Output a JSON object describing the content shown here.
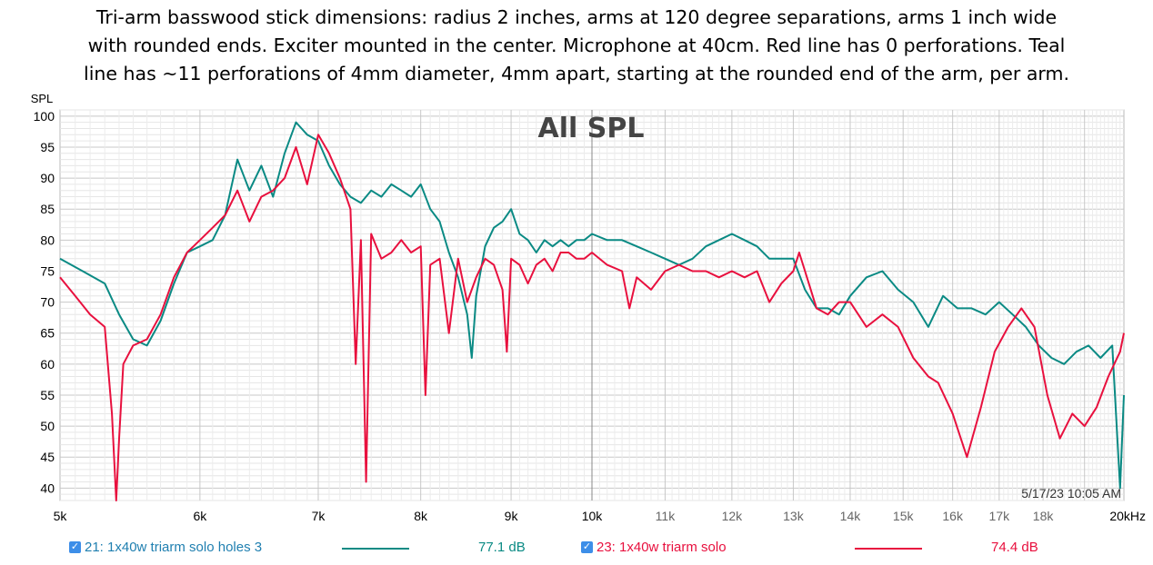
{
  "caption": [
    "Tri-arm basswood stick dimensions: radius 2 inches, arms at 120 degree separations, arms 1 inch wide",
    "with rounded ends. Exciter mounted in the center. Microphone at 40cm. Red line has 0 perforations. Teal",
    "line has ~11 perforations of 4mm diameter, 4mm apart, starting at the rounded end of the arm, per arm."
  ],
  "timestamp": "5/17/23 10:05 AM",
  "colors": {
    "teal": "#0a8a84",
    "red": "#e8103e",
    "grid": "#d4d4d4",
    "checkbox": "#3d8ee8"
  },
  "legend": [
    {
      "checked": true,
      "label": "21: 1x40w triarm solo holes 3",
      "value": "77.1 dB",
      "color": "#0a8a84"
    },
    {
      "checked": true,
      "label": "23: 1x40w triarm solo",
      "value": "74.4 dB",
      "color": "#e8103e"
    }
  ],
  "chart_data": {
    "type": "line",
    "title": "All SPL",
    "ylabel": "SPL",
    "xlabel": "",
    "xscale": "log",
    "xlim": [
      5000,
      20000
    ],
    "ylim": [
      38,
      101
    ],
    "yticks": [
      40,
      45,
      50,
      55,
      60,
      65,
      70,
      75,
      80,
      85,
      90,
      95,
      100
    ],
    "xticks": [
      {
        "value": 5000,
        "label": "5k"
      },
      {
        "value": 6000,
        "label": "6k"
      },
      {
        "value": 7000,
        "label": "7k"
      },
      {
        "value": 8000,
        "label": "8k"
      },
      {
        "value": 9000,
        "label": "9k"
      },
      {
        "value": 10000,
        "label": "10k"
      },
      {
        "value": 11000,
        "label": "11k"
      },
      {
        "value": 12000,
        "label": "12k"
      },
      {
        "value": 13000,
        "label": "13k"
      },
      {
        "value": 14000,
        "label": "14k"
      },
      {
        "value": 15000,
        "label": "15k"
      },
      {
        "value": 16000,
        "label": "16k"
      },
      {
        "value": 17000,
        "label": "17k"
      },
      {
        "value": 18000,
        "label": "18k"
      },
      {
        "value": 20000,
        "label": "20kHz"
      }
    ],
    "series": [
      {
        "name": "21: 1x40w triarm solo holes 3",
        "color": "#0a8a84",
        "x": [
          5000,
          5150,
          5300,
          5400,
          5500,
          5600,
          5700,
          5800,
          5900,
          6000,
          6100,
          6200,
          6300,
          6400,
          6500,
          6600,
          6700,
          6800,
          6850,
          6900,
          7000,
          7100,
          7200,
          7300,
          7400,
          7500,
          7600,
          7700,
          7800,
          7900,
          8000,
          8100,
          8200,
          8300,
          8400,
          8500,
          8550,
          8600,
          8700,
          8800,
          8900,
          9000,
          9100,
          9200,
          9300,
          9400,
          9500,
          9600,
          9700,
          9800,
          9900,
          10000,
          10200,
          10400,
          10600,
          10800,
          11000,
          11200,
          11400,
          11600,
          11800,
          12000,
          12200,
          12400,
          12600,
          12800,
          13000,
          13200,
          13400,
          13600,
          13800,
          14000,
          14300,
          14600,
          14900,
          15200,
          15500,
          15800,
          16100,
          16400,
          16700,
          17000,
          17300,
          17600,
          17900,
          18200,
          18500,
          18800,
          19100,
          19400,
          19700,
          19900,
          20000
        ],
        "y": [
          77,
          75,
          73,
          68,
          64,
          63,
          67,
          73,
          78,
          79,
          80,
          84,
          93,
          88,
          92,
          87,
          94,
          99,
          98,
          97,
          96,
          92,
          89,
          87,
          86,
          88,
          87,
          89,
          88,
          87,
          89,
          85,
          83,
          78,
          74,
          68,
          61,
          71,
          79,
          82,
          83,
          85,
          81,
          80,
          78,
          80,
          79,
          80,
          79,
          80,
          80,
          81,
          80,
          80,
          79,
          78,
          77,
          76,
          77,
          79,
          80,
          81,
          80,
          79,
          77,
          77,
          77,
          72,
          69,
          69,
          68,
          71,
          74,
          75,
          72,
          70,
          66,
          71,
          69,
          69,
          68,
          70,
          68,
          66,
          63,
          61,
          60,
          62,
          63,
          61,
          63,
          40,
          55
        ]
      },
      {
        "name": "23: 1x40w triarm solo",
        "color": "#e8103e",
        "x": [
          5000,
          5100,
          5200,
          5300,
          5350,
          5380,
          5400,
          5430,
          5500,
          5600,
          5700,
          5800,
          5900,
          6000,
          6100,
          6200,
          6300,
          6400,
          6500,
          6600,
          6700,
          6800,
          6900,
          7000,
          7100,
          7200,
          7300,
          7350,
          7400,
          7450,
          7500,
          7600,
          7700,
          7800,
          7900,
          8000,
          8050,
          8100,
          8200,
          8300,
          8400,
          8500,
          8600,
          8700,
          8800,
          8900,
          8950,
          9000,
          9100,
          9200,
          9300,
          9400,
          9500,
          9600,
          9700,
          9800,
          9900,
          10000,
          10200,
          10400,
          10500,
          10600,
          10800,
          11000,
          11200,
          11400,
          11600,
          11800,
          12000,
          12200,
          12400,
          12600,
          12800,
          13000,
          13100,
          13200,
          13400,
          13600,
          13800,
          14000,
          14300,
          14600,
          14900,
          15200,
          15500,
          15700,
          16000,
          16300,
          16600,
          16900,
          17200,
          17500,
          17800,
          18100,
          18400,
          18700,
          19000,
          19300,
          19600,
          19900,
          20000
        ],
        "y": [
          74,
          71,
          68,
          66,
          52,
          38,
          48,
          60,
          63,
          64,
          68,
          74,
          78,
          80,
          82,
          84,
          88,
          83,
          87,
          88,
          90,
          95,
          89,
          97,
          94,
          90,
          85,
          60,
          80,
          41,
          81,
          77,
          78,
          80,
          78,
          79,
          55,
          76,
          77,
          65,
          77,
          70,
          74,
          77,
          76,
          72,
          62,
          77,
          76,
          73,
          76,
          77,
          75,
          78,
          78,
          77,
          77,
          78,
          76,
          75,
          69,
          74,
          72,
          75,
          76,
          75,
          75,
          74,
          75,
          74,
          75,
          70,
          73,
          75,
          78,
          75,
          69,
          68,
          70,
          70,
          66,
          68,
          66,
          61,
          58,
          57,
          52,
          45,
          53,
          62,
          66,
          69,
          66,
          55,
          48,
          52,
          50,
          53,
          58,
          62,
          65
        ]
      }
    ]
  }
}
